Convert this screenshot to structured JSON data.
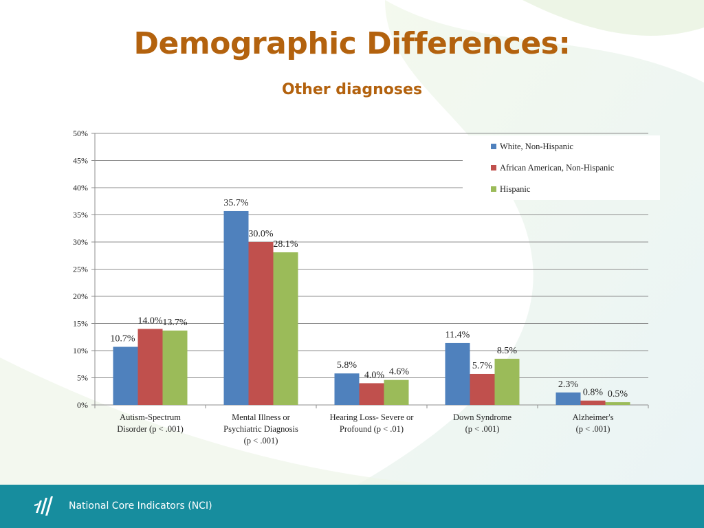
{
  "slide": {
    "title": "Demographic Differences:",
    "subtitle": "Other diagnoses"
  },
  "footer": {
    "org_name": "National Core Indicators (NCI)",
    "logo_icon": "nci-logo-icon"
  },
  "chart_data": {
    "type": "bar",
    "categories": [
      [
        "Autism-Spectrum",
        "Disorder (p < .001)"
      ],
      [
        "Mental Illness or",
        "Psychiatric Diagnosis",
        "(p < .001)"
      ],
      [
        "Hearing Loss- Severe or",
        "Profound (p < .01)"
      ],
      [
        "Down Syndrome",
        "(p < .001)"
      ],
      [
        "Alzheimer's",
        "(p < .001)"
      ]
    ],
    "series": [
      {
        "name": "White, Non-Hispanic",
        "color": "#4f81bd",
        "values": [
          10.7,
          35.7,
          5.8,
          11.4,
          2.3
        ],
        "labels": [
          "10.7%",
          "35.7%",
          "5.8%",
          "11.4%",
          "2.3%"
        ]
      },
      {
        "name": "African American, Non-Hispanic",
        "color": "#c0504d",
        "values": [
          14.0,
          30.0,
          4.0,
          5.7,
          0.8
        ],
        "labels": [
          "14.0%",
          "30.0%",
          "4.0%",
          "5.7%",
          "0.8%"
        ]
      },
      {
        "name": "Hispanic",
        "color": "#9bbb59",
        "values": [
          13.7,
          28.1,
          4.6,
          8.5,
          0.5
        ],
        "labels": [
          "13.7%",
          "28.1%",
          "4.6%",
          "8.5%",
          "0.5%"
        ]
      }
    ],
    "yticks": [
      "0%",
      "5%",
      "10%",
      "15%",
      "20%",
      "25%",
      "30%",
      "35%",
      "40%",
      "45%",
      "50%"
    ],
    "ylim": [
      0,
      50
    ],
    "grid": true,
    "legend_position": "top-right",
    "xlabel": "",
    "ylabel": ""
  }
}
